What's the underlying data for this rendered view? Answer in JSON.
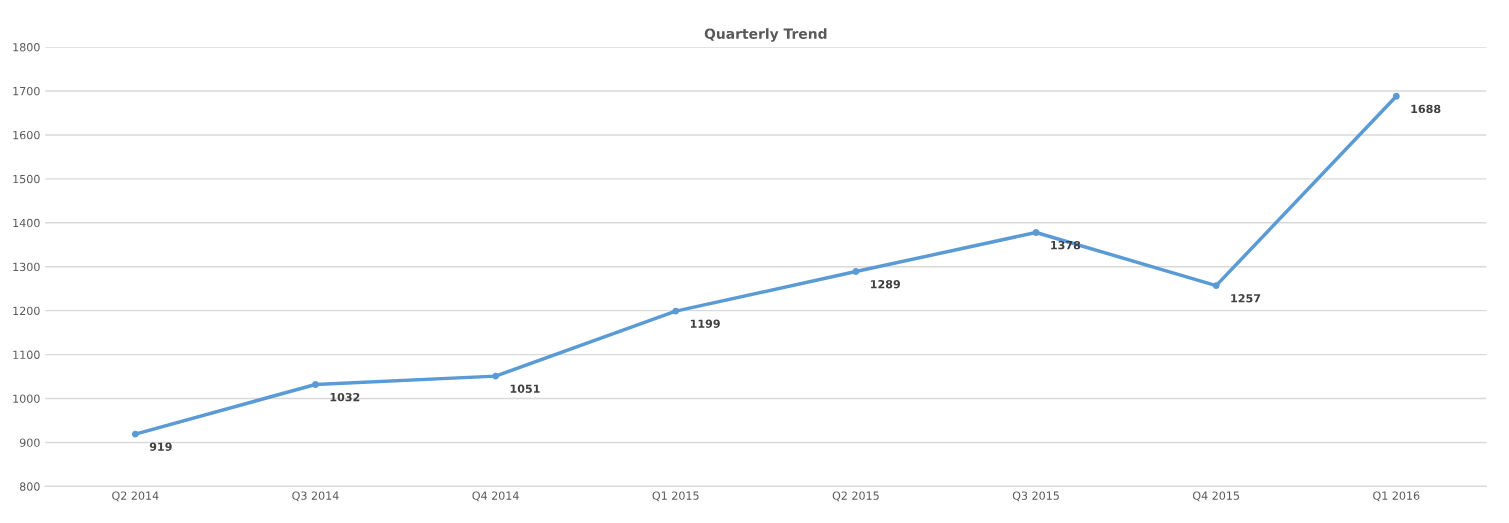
{
  "chart_data": {
    "type": "line",
    "title": "Quarterly Trend",
    "categories": [
      "Q2 2014",
      "Q3 2014",
      "Q4 2014",
      "Q1 2015",
      "Q2 2015",
      "Q3 2015",
      "Q4 2015",
      "Q1 2016"
    ],
    "series": [
      {
        "color": "#5b9bd5",
        "values": [
          919,
          1032,
          1051,
          1199,
          1289,
          1378,
          1257,
          1688
        ]
      }
    ],
    "ylim": [
      800,
      1800
    ],
    "yticks": [
      800,
      900,
      1000,
      1100,
      1200,
      1300,
      1400,
      1500,
      1600,
      1700,
      1800
    ],
    "grid": "y",
    "marker": "circle",
    "line_style": "solid",
    "data_labels": true
  }
}
